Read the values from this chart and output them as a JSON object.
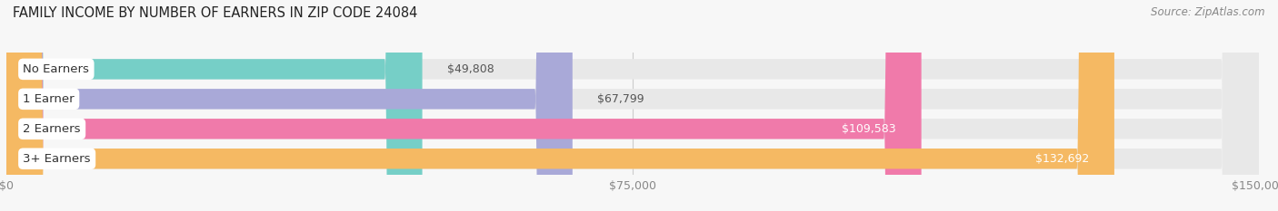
{
  "title": "FAMILY INCOME BY NUMBER OF EARNERS IN ZIP CODE 24084",
  "source": "Source: ZipAtlas.com",
  "categories": [
    "No Earners",
    "1 Earner",
    "2 Earners",
    "3+ Earners"
  ],
  "values": [
    49808,
    67799,
    109583,
    132692
  ],
  "bar_colors": [
    "#76cfc7",
    "#a9a9d8",
    "#f07aaa",
    "#f5b963"
  ],
  "labels": [
    "$49,808",
    "$67,799",
    "$109,583",
    "$132,692"
  ],
  "label_inside": [
    false,
    false,
    true,
    true
  ],
  "x_ticks": [
    0,
    75000,
    150000
  ],
  "x_tick_labels": [
    "$0",
    "$75,000",
    "$150,000"
  ],
  "xlim": [
    0,
    150000
  ],
  "title_fontsize": 10.5,
  "source_fontsize": 8.5,
  "label_fontsize": 9,
  "category_fontsize": 9.5,
  "tick_fontsize": 9,
  "background_color": "#f7f7f7",
  "bar_bg_color": "#e8e8e8",
  "bar_height": 0.68,
  "bar_gap": 0.32
}
